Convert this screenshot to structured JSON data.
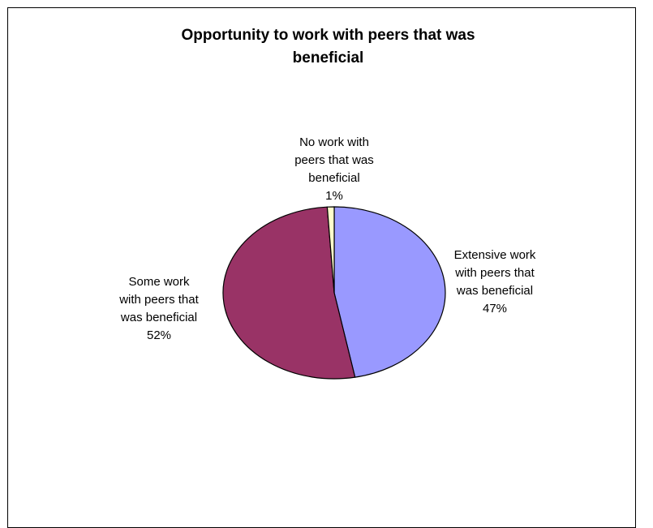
{
  "chart_data": {
    "type": "pie",
    "title_lines": [
      "Opportunity to work with peers that was",
      "beneficial"
    ],
    "slices": [
      {
        "name": "Extensive work with peers that was beneficial",
        "value": 47,
        "label_lines": [
          "Extensive work",
          "with peers that",
          "was beneficial",
          "47%"
        ],
        "color": "#9999ff"
      },
      {
        "name": "Some work with peers that was beneficial",
        "value": 52,
        "label_lines": [
          "Some work",
          "with peers that",
          "was beneficial",
          "52%"
        ],
        "color": "#993366"
      },
      {
        "name": "No work with peers that was beneficial",
        "value": 1,
        "label_lines": [
          "No work with",
          "peers that was",
          "beneficial",
          "1%"
        ],
        "color": "#ffffcc"
      }
    ],
    "start_angle_deg": 0,
    "direction": "clockwise",
    "legend": "none"
  }
}
